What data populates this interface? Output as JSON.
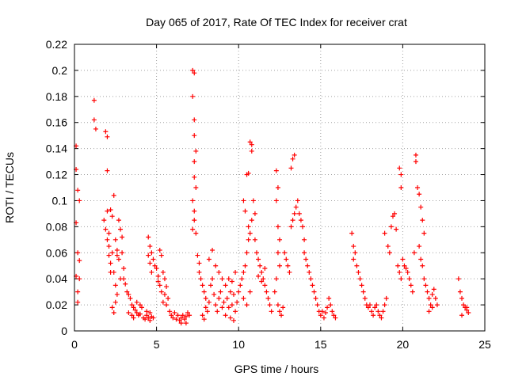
{
  "chart_data": {
    "type": "scatter",
    "title": "Day 065 of 2017, Rate Of TEC Index for receiver crat",
    "xlabel": "GPS time / hours",
    "ylabel": "ROTI / TECUs",
    "xlim": [
      0,
      25
    ],
    "ylim": [
      0,
      0.22
    ],
    "xticks": [
      0,
      5,
      10,
      15,
      20,
      25
    ],
    "yticks": [
      0,
      0.02,
      0.04,
      0.06,
      0.08,
      0.1,
      0.12,
      0.14,
      0.16,
      0.18,
      0.2,
      0.22
    ],
    "grid": true,
    "marker": "+",
    "color": "#ff0000",
    "points": [
      [
        0.1,
        0.142
      ],
      [
        0.1,
        0.124
      ],
      [
        0.2,
        0.108
      ],
      [
        0.1,
        0.083
      ],
      [
        0.2,
        0.06
      ],
      [
        0.1,
        0.042
      ],
      [
        0.2,
        0.03
      ],
      [
        0.2,
        0.022
      ],
      [
        0.3,
        0.1
      ],
      [
        0.3,
        0.054
      ],
      [
        0.3,
        0.04
      ],
      [
        1.2,
        0.177
      ],
      [
        1.2,
        0.162
      ],
      [
        1.3,
        0.155
      ],
      [
        1.9,
        0.153
      ],
      [
        2.0,
        0.149
      ],
      [
        2.0,
        0.123
      ],
      [
        1.8,
        0.085
      ],
      [
        1.9,
        0.078
      ],
      [
        2.0,
        0.092
      ],
      [
        2.0,
        0.07
      ],
      [
        2.1,
        0.065
      ],
      [
        2.1,
        0.058
      ],
      [
        2.2,
        0.093
      ],
      [
        2.2,
        0.052
      ],
      [
        2.3,
        0.088
      ],
      [
        2.3,
        0.06
      ],
      [
        2.4,
        0.104
      ],
      [
        2.4,
        0.045
      ],
      [
        2.5,
        0.07
      ],
      [
        2.5,
        0.035
      ],
      [
        2.6,
        0.062
      ],
      [
        2.6,
        0.028
      ],
      [
        2.7,
        0.055
      ],
      [
        2.7,
        0.085
      ],
      [
        2.8,
        0.04
      ],
      [
        2.8,
        0.078
      ],
      [
        2.9,
        0.06
      ],
      [
        3.0,
        0.048
      ],
      [
        2.3,
        0.018
      ],
      [
        2.4,
        0.014
      ],
      [
        2.5,
        0.022
      ],
      [
        2.1,
        0.075
      ],
      [
        2.2,
        0.045
      ],
      [
        2.6,
        0.058
      ],
      [
        2.9,
        0.072
      ],
      [
        3.0,
        0.04
      ],
      [
        3.1,
        0.036
      ],
      [
        3.2,
        0.03
      ],
      [
        3.3,
        0.028
      ],
      [
        3.4,
        0.025
      ],
      [
        3.5,
        0.02
      ],
      [
        3.6,
        0.018
      ],
      [
        3.3,
        0.014
      ],
      [
        3.5,
        0.012
      ],
      [
        3.7,
        0.016
      ],
      [
        3.8,
        0.014
      ],
      [
        3.9,
        0.012
      ],
      [
        4.0,
        0.02
      ],
      [
        4.1,
        0.018
      ],
      [
        4.2,
        0.01
      ],
      [
        4.3,
        0.009
      ],
      [
        4.4,
        0.012
      ],
      [
        4.5,
        0.01
      ],
      [
        4.6,
        0.008
      ],
      [
        4.7,
        0.011
      ],
      [
        3.6,
        0.01
      ],
      [
        3.8,
        0.022
      ],
      [
        4.0,
        0.013
      ],
      [
        4.4,
        0.015
      ],
      [
        4.6,
        0.014
      ],
      [
        4.8,
        0.01
      ],
      [
        4.5,
        0.072
      ],
      [
        4.6,
        0.065
      ],
      [
        4.5,
        0.058
      ],
      [
        4.6,
        0.052
      ],
      [
        4.7,
        0.06
      ],
      [
        4.8,
        0.055
      ],
      [
        4.9,
        0.05
      ],
      [
        4.7,
        0.045
      ],
      [
        5.0,
        0.048
      ],
      [
        5.1,
        0.042
      ],
      [
        5.2,
        0.062
      ],
      [
        5.3,
        0.058
      ],
      [
        5.2,
        0.035
      ],
      [
        5.4,
        0.045
      ],
      [
        5.5,
        0.04
      ],
      [
        5.3,
        0.03
      ],
      [
        5.5,
        0.028
      ],
      [
        5.6,
        0.034
      ],
      [
        5.4,
        0.022
      ],
      [
        5.6,
        0.02
      ],
      [
        5.7,
        0.025
      ],
      [
        5.1,
        0.038
      ],
      [
        5.8,
        0.015
      ],
      [
        5.9,
        0.012
      ],
      [
        6.0,
        0.01
      ],
      [
        6.1,
        0.014
      ],
      [
        6.2,
        0.009
      ],
      [
        6.3,
        0.012
      ],
      [
        6.4,
        0.008
      ],
      [
        6.5,
        0.01
      ],
      [
        6.6,
        0.012
      ],
      [
        6.7,
        0.009
      ],
      [
        6.8,
        0.011
      ],
      [
        6.9,
        0.014
      ],
      [
        7.0,
        0.012
      ],
      [
        6.5,
        0.006
      ],
      [
        6.8,
        0.006
      ],
      [
        7.2,
        0.2
      ],
      [
        7.3,
        0.198
      ],
      [
        7.2,
        0.18
      ],
      [
        7.3,
        0.162
      ],
      [
        7.3,
        0.15
      ],
      [
        7.4,
        0.138
      ],
      [
        7.3,
        0.13
      ],
      [
        7.3,
        0.118
      ],
      [
        7.4,
        0.11
      ],
      [
        7.2,
        0.1
      ],
      [
        7.3,
        0.092
      ],
      [
        7.3,
        0.085
      ],
      [
        7.2,
        0.078
      ],
      [
        7.4,
        0.075
      ],
      [
        7.5,
        0.058
      ],
      [
        7.6,
        0.052
      ],
      [
        7.6,
        0.045
      ],
      [
        7.7,
        0.04
      ],
      [
        7.8,
        0.035
      ],
      [
        7.9,
        0.03
      ],
      [
        8.0,
        0.025
      ],
      [
        8.0,
        0.018
      ],
      [
        8.1,
        0.015
      ],
      [
        7.8,
        0.012
      ],
      [
        7.9,
        0.009
      ],
      [
        8.2,
        0.022
      ],
      [
        8.3,
        0.035
      ],
      [
        8.4,
        0.04
      ],
      [
        8.5,
        0.028
      ],
      [
        8.6,
        0.02
      ],
      [
        8.7,
        0.015
      ],
      [
        8.8,
        0.025
      ],
      [
        8.9,
        0.03
      ],
      [
        9.0,
        0.018
      ],
      [
        9.1,
        0.022
      ],
      [
        9.2,
        0.012
      ],
      [
        9.3,
        0.025
      ],
      [
        9.4,
        0.018
      ],
      [
        9.5,
        0.03
      ],
      [
        9.6,
        0.02
      ],
      [
        9.7,
        0.028
      ],
      [
        9.8,
        0.015
      ],
      [
        9.9,
        0.022
      ],
      [
        10.0,
        0.03
      ],
      [
        8.2,
        0.055
      ],
      [
        8.4,
        0.062
      ],
      [
        8.6,
        0.05
      ],
      [
        8.8,
        0.045
      ],
      [
        9.0,
        0.04
      ],
      [
        9.2,
        0.035
      ],
      [
        9.4,
        0.04
      ],
      [
        9.6,
        0.038
      ],
      [
        9.8,
        0.045
      ],
      [
        9.5,
        0.01
      ],
      [
        9.7,
        0.008
      ],
      [
        10.1,
        0.035
      ],
      [
        10.2,
        0.04
      ],
      [
        10.3,
        0.045
      ],
      [
        10.4,
        0.05
      ],
      [
        10.5,
        0.06
      ],
      [
        10.6,
        0.07
      ],
      [
        10.7,
        0.075
      ],
      [
        10.3,
        0.025
      ],
      [
        10.5,
        0.02
      ],
      [
        10.7,
        0.03
      ],
      [
        10.5,
        0.12
      ],
      [
        10.6,
        0.121
      ],
      [
        10.3,
        0.1
      ],
      [
        10.4,
        0.092
      ],
      [
        10.7,
        0.145
      ],
      [
        10.8,
        0.143
      ],
      [
        10.8,
        0.138
      ],
      [
        10.9,
        0.1
      ],
      [
        11.0,
        0.09
      ],
      [
        10.8,
        0.085
      ],
      [
        10.6,
        0.08
      ],
      [
        11.0,
        0.07
      ],
      [
        11.1,
        0.06
      ],
      [
        11.2,
        0.055
      ],
      [
        11.3,
        0.05
      ],
      [
        11.4,
        0.045
      ],
      [
        11.5,
        0.04
      ],
      [
        11.6,
        0.035
      ],
      [
        11.7,
        0.03
      ],
      [
        11.8,
        0.025
      ],
      [
        11.2,
        0.042
      ],
      [
        11.4,
        0.038
      ],
      [
        11.6,
        0.048
      ],
      [
        11.9,
        0.02
      ],
      [
        12.0,
        0.015
      ],
      [
        12.3,
        0.123
      ],
      [
        12.4,
        0.11
      ],
      [
        12.3,
        0.1
      ],
      [
        12.4,
        0.08
      ],
      [
        12.5,
        0.07
      ],
      [
        12.4,
        0.06
      ],
      [
        12.5,
        0.05
      ],
      [
        12.3,
        0.04
      ],
      [
        12.2,
        0.03
      ],
      [
        12.4,
        0.02
      ],
      [
        12.5,
        0.015
      ],
      [
        12.6,
        0.012
      ],
      [
        12.7,
        0.018
      ],
      [
        12.8,
        0.06
      ],
      [
        12.9,
        0.055
      ],
      [
        13.0,
        0.05
      ],
      [
        13.1,
        0.045
      ],
      [
        13.2,
        0.08
      ],
      [
        13.3,
        0.085
      ],
      [
        13.4,
        0.09
      ],
      [
        13.5,
        0.095
      ],
      [
        13.6,
        0.1
      ],
      [
        13.7,
        0.09
      ],
      [
        13.8,
        0.085
      ],
      [
        13.9,
        0.08
      ],
      [
        14.0,
        0.07
      ],
      [
        13.2,
        0.125
      ],
      [
        13.3,
        0.132
      ],
      [
        13.4,
        0.135
      ],
      [
        14.0,
        0.06
      ],
      [
        14.1,
        0.055
      ],
      [
        14.2,
        0.05
      ],
      [
        14.3,
        0.045
      ],
      [
        14.4,
        0.04
      ],
      [
        14.5,
        0.035
      ],
      [
        14.6,
        0.03
      ],
      [
        14.7,
        0.025
      ],
      [
        14.8,
        0.02
      ],
      [
        14.9,
        0.015
      ],
      [
        15.0,
        0.012
      ],
      [
        15.1,
        0.015
      ],
      [
        15.2,
        0.01
      ],
      [
        15.3,
        0.014
      ],
      [
        15.4,
        0.018
      ],
      [
        15.5,
        0.025
      ],
      [
        15.6,
        0.02
      ],
      [
        15.7,
        0.015
      ],
      [
        15.8,
        0.012
      ],
      [
        15.9,
        0.01
      ],
      [
        16.9,
        0.075
      ],
      [
        17.0,
        0.065
      ],
      [
        17.1,
        0.06
      ],
      [
        17.0,
        0.055
      ],
      [
        17.2,
        0.05
      ],
      [
        17.3,
        0.045
      ],
      [
        17.4,
        0.04
      ],
      [
        17.5,
        0.035
      ],
      [
        17.6,
        0.03
      ],
      [
        17.7,
        0.025
      ],
      [
        17.8,
        0.02
      ],
      [
        17.9,
        0.018
      ],
      [
        18.0,
        0.02
      ],
      [
        18.1,
        0.015
      ],
      [
        18.2,
        0.012
      ],
      [
        18.3,
        0.018
      ],
      [
        18.4,
        0.02
      ],
      [
        18.5,
        0.015
      ],
      [
        18.6,
        0.012
      ],
      [
        18.7,
        0.01
      ],
      [
        18.8,
        0.015
      ],
      [
        18.9,
        0.02
      ],
      [
        19.0,
        0.025
      ],
      [
        18.9,
        0.075
      ],
      [
        19.1,
        0.065
      ],
      [
        19.2,
        0.06
      ],
      [
        19.3,
        0.08
      ],
      [
        19.4,
        0.088
      ],
      [
        19.5,
        0.09
      ],
      [
        19.6,
        0.078
      ],
      [
        19.7,
        0.05
      ],
      [
        19.8,
        0.045
      ],
      [
        19.9,
        0.04
      ],
      [
        19.8,
        0.125
      ],
      [
        19.9,
        0.12
      ],
      [
        19.9,
        0.11
      ],
      [
        20.0,
        0.055
      ],
      [
        20.1,
        0.05
      ],
      [
        20.2,
        0.048
      ],
      [
        20.3,
        0.045
      ],
      [
        20.4,
        0.04
      ],
      [
        20.5,
        0.035
      ],
      [
        20.6,
        0.03
      ],
      [
        20.7,
        0.06
      ],
      [
        20.8,
        0.13
      ],
      [
        20.8,
        0.135
      ],
      [
        20.9,
        0.11
      ],
      [
        21.0,
        0.105
      ],
      [
        21.1,
        0.095
      ],
      [
        21.2,
        0.085
      ],
      [
        21.3,
        0.075
      ],
      [
        21.0,
        0.065
      ],
      [
        21.1,
        0.055
      ],
      [
        21.2,
        0.05
      ],
      [
        21.3,
        0.04
      ],
      [
        21.4,
        0.035
      ],
      [
        21.5,
        0.03
      ],
      [
        21.6,
        0.025
      ],
      [
        21.7,
        0.02
      ],
      [
        21.8,
        0.028
      ],
      [
        21.9,
        0.032
      ],
      [
        22.0,
        0.025
      ],
      [
        22.1,
        0.02
      ],
      [
        21.6,
        0.015
      ],
      [
        21.8,
        0.018
      ],
      [
        23.4,
        0.04
      ],
      [
        23.5,
        0.03
      ],
      [
        23.6,
        0.025
      ],
      [
        23.7,
        0.02
      ],
      [
        23.8,
        0.018
      ],
      [
        23.9,
        0.016
      ],
      [
        24.0,
        0.014
      ],
      [
        23.6,
        0.012
      ],
      [
        23.9,
        0.018
      ]
    ]
  }
}
